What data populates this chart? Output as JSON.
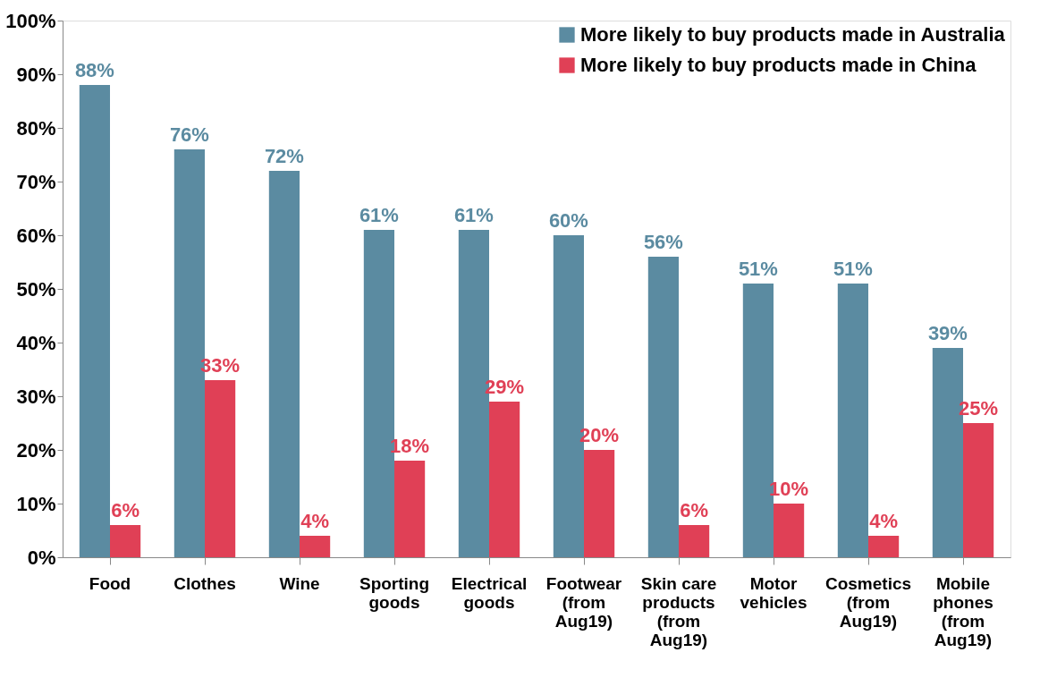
{
  "chart_data": {
    "type": "bar",
    "categories": [
      "Food",
      "Clothes",
      "Wine",
      "Sporting\ngoods",
      "Electrical\ngoods",
      "Footwear\n(from\nAug19)",
      "Skin care\nproducts\n(from\nAug19)",
      "Motor\nvehicles",
      "Cosmetics\n(from\nAug19)",
      "Mobile\nphones\n(from\nAug19)"
    ],
    "series": [
      {
        "name": "More likely to buy products made in Australia",
        "color": "#5b8ba1",
        "values": [
          88,
          76,
          72,
          61,
          61,
          60,
          56,
          51,
          51,
          39
        ],
        "value_labels": [
          "88%",
          "76%",
          "72%",
          "61%",
          "61%",
          "60%",
          "56%",
          "51%",
          "51%",
          "39%"
        ]
      },
      {
        "name": "More likely to buy products made in China",
        "color": "#e04056",
        "values": [
          6,
          33,
          4,
          18,
          29,
          20,
          6,
          10,
          4,
          25
        ],
        "value_labels": [
          "6%",
          "33%",
          "4%",
          "18%",
          "29%",
          "20%",
          "6%",
          "10%",
          "4%",
          "25%"
        ]
      }
    ],
    "ylim": [
      0,
      100
    ],
    "yticks": [
      {
        "value": 0,
        "label": "0%"
      },
      {
        "value": 10,
        "label": "10%"
      },
      {
        "value": 20,
        "label": "20%"
      },
      {
        "value": 30,
        "label": "30%"
      },
      {
        "value": 40,
        "label": "40%"
      },
      {
        "value": 50,
        "label": "50%"
      },
      {
        "value": 60,
        "label": "60%"
      },
      {
        "value": 70,
        "label": "70%"
      },
      {
        "value": 80,
        "label": "80%"
      },
      {
        "value": 90,
        "label": "90%"
      },
      {
        "value": 100,
        "label": "100%"
      }
    ],
    "grid": false,
    "legend": "top right"
  }
}
